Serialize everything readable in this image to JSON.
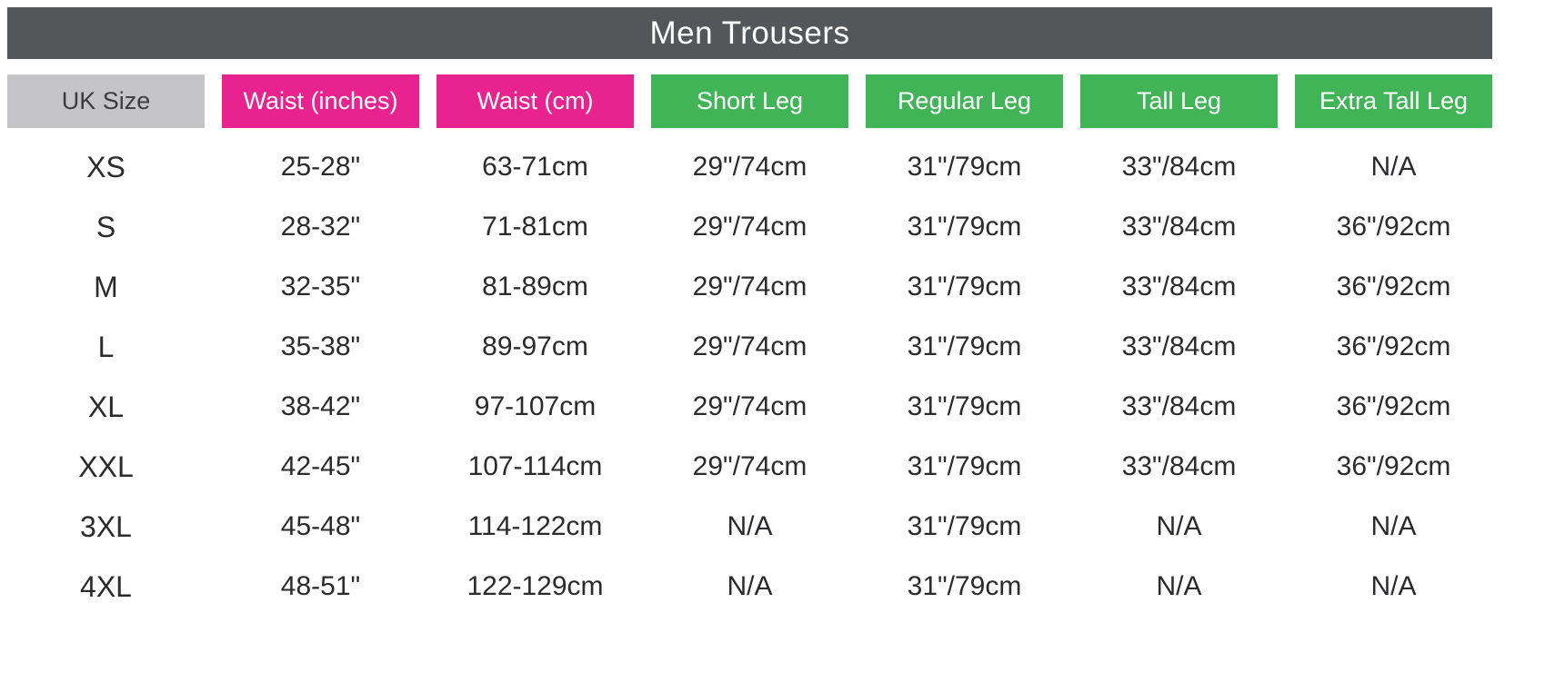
{
  "chart_data": {
    "type": "table",
    "title": "Men Trousers",
    "columns": [
      {
        "label": "UK Size",
        "group": "size"
      },
      {
        "label": "Waist (inches)",
        "group": "waist"
      },
      {
        "label": "Waist (cm)",
        "group": "waist"
      },
      {
        "label": "Short Leg",
        "group": "leg"
      },
      {
        "label": "Regular Leg",
        "group": "leg"
      },
      {
        "label": "Tall Leg",
        "group": "leg"
      },
      {
        "label": "Extra Tall Leg",
        "group": "leg"
      }
    ],
    "rows": [
      [
        "XS",
        "25-28\"",
        "63-71cm",
        "29\"/74cm",
        "31\"/79cm",
        "33\"/84cm",
        "N/A"
      ],
      [
        "S",
        "28-32\"",
        "71-81cm",
        "29\"/74cm",
        "31\"/79cm",
        "33\"/84cm",
        "36\"/92cm"
      ],
      [
        "M",
        "32-35\"",
        "81-89cm",
        "29\"/74cm",
        "31\"/79cm",
        "33\"/84cm",
        "36\"/92cm"
      ],
      [
        "L",
        "35-38\"",
        "89-97cm",
        "29\"/74cm",
        "31\"/79cm",
        "33\"/84cm",
        "36\"/92cm"
      ],
      [
        "XL",
        "38-42\"",
        "97-107cm",
        "29\"/74cm",
        "31\"/79cm",
        "33\"/84cm",
        "36\"/92cm"
      ],
      [
        "XXL",
        "42-45\"",
        "107-114cm",
        "29\"/74cm",
        "31\"/79cm",
        "33\"/84cm",
        "36\"/92cm"
      ],
      [
        "3XL",
        "45-48\"",
        "114-122cm",
        "N/A",
        "31\"/79cm",
        "N/A",
        "N/A"
      ],
      [
        "4XL",
        "48-51\"",
        "122-129cm",
        "N/A",
        "31\"/79cm",
        "N/A",
        "N/A"
      ]
    ]
  },
  "colors": {
    "title_bg": "#54575A",
    "title_text": "#FFFFFF",
    "size_header_bg": "#C5C5C7",
    "size_header_text": "#3D3D3F",
    "waist_header_bg": "#E8238F",
    "leg_header_bg": "#41B457",
    "header_text": "#FFFFFF",
    "body_text": "#2B2B2D",
    "page_bg": "#FFFFFF"
  }
}
